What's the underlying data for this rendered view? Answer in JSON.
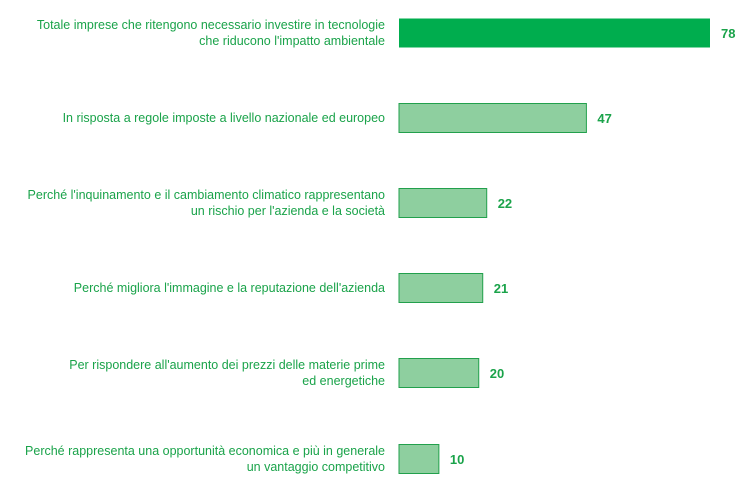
{
  "colors": {
    "highlight_bar": "#00ad4e",
    "bar": "#8ecf9f",
    "bar_border": "#22a04c",
    "label_text": "#1aa34a",
    "value_text": "#1aa34a"
  },
  "chart_data": {
    "type": "bar",
    "orientation": "horizontal",
    "categories": [
      [
        "Totale imprese che ritengono necessario investire in tecnologie",
        "che riducono l'impatto ambientale"
      ],
      [
        "In risposta a regole imposte a livello nazionale ed europeo"
      ],
      [
        "Perché l'inquinamento e il cambiamento climatico rappresentano",
        "un rischio per l'azienda e la società"
      ],
      [
        "Perché migliora l'immagine e la reputazione dell'azienda"
      ],
      [
        "Per rispondere all'aumento dei prezzi delle materie prime",
        "ed energetiche"
      ],
      [
        "Perché rappresenta una opportunità economica e più in generale",
        "un vantaggio competitivo"
      ]
    ],
    "values": [
      78,
      47,
      22,
      21,
      20,
      10
    ],
    "highlighted_index": 0,
    "xlim": [
      0,
      78
    ],
    "grid": false,
    "title": "",
    "xlabel": "",
    "ylabel": ""
  }
}
